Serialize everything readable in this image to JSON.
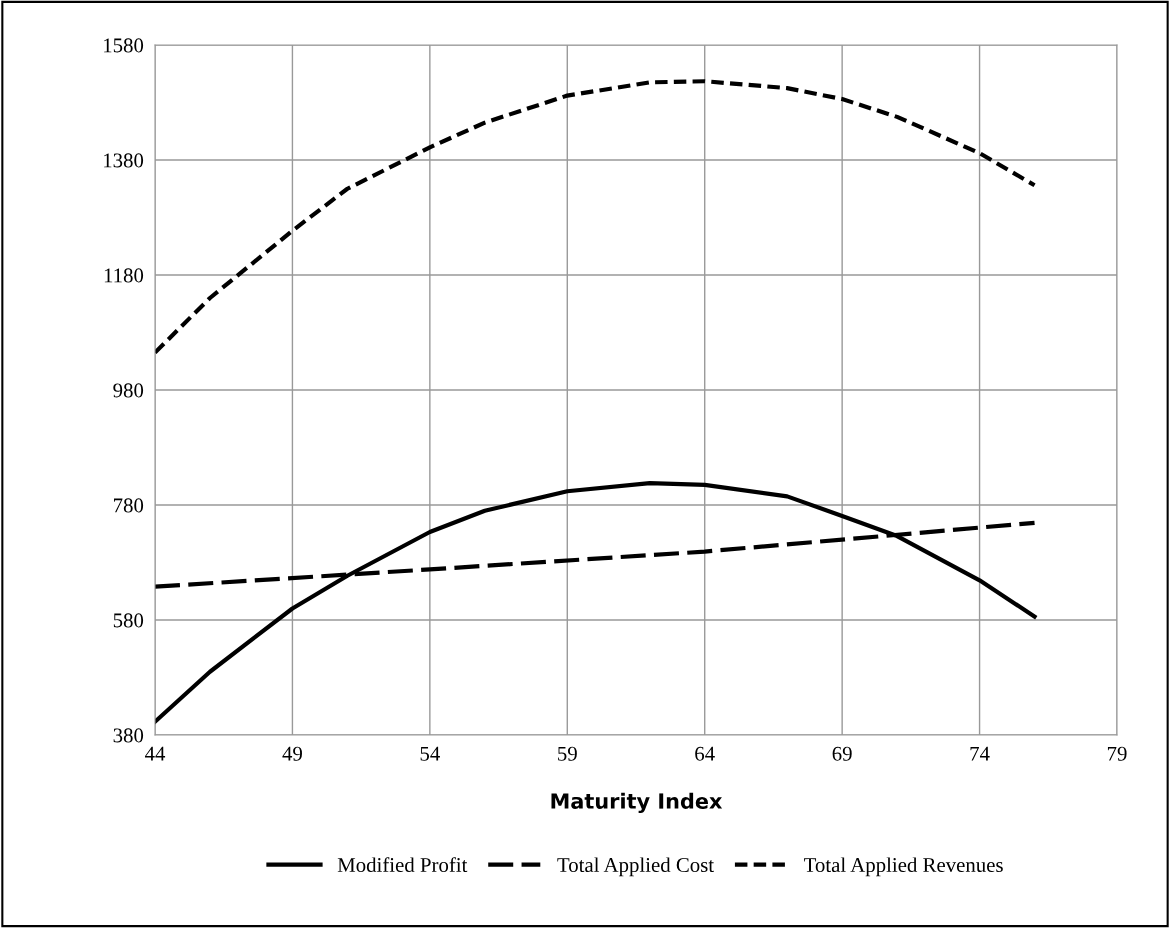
{
  "chart_data": {
    "type": "line",
    "xlabel": "Maturity Index",
    "xlim": [
      44,
      79
    ],
    "xticks": [
      44,
      49,
      54,
      59,
      64,
      69,
      74,
      79
    ],
    "ylim": [
      380,
      1580
    ],
    "yticks": [
      380,
      580,
      780,
      980,
      1180,
      1380,
      1580
    ],
    "grid": true,
    "legend": "bottom",
    "marker": "none",
    "series": [
      {
        "name": "Modified Profit",
        "color": "#000000",
        "line_style": "solid",
        "x": [
          44,
          46,
          49,
          51,
          54,
          56,
          59,
          62,
          64,
          67,
          69,
          71,
          74,
          76
        ],
        "values": [
          403,
          490,
          600,
          657,
          733,
          770,
          804,
          818,
          815,
          795,
          761,
          726,
          649,
          586
        ]
      },
      {
        "name": "Total Applied Cost",
        "color": "#000000",
        "line_style": "longdash",
        "x": [
          44,
          54,
          64,
          76
        ],
        "values": [
          638,
          668,
          699,
          749
        ]
      },
      {
        "name": "Total Applied Revenues",
        "color": "#000000",
        "line_style": "dashed",
        "x": [
          44,
          46,
          49,
          51,
          54,
          56,
          59,
          62,
          64,
          67,
          69,
          71,
          74,
          76
        ],
        "values": [
          1045,
          1140,
          1257,
          1330,
          1402,
          1445,
          1492,
          1515,
          1517,
          1505,
          1486,
          1455,
          1392,
          1336
        ]
      }
    ]
  }
}
